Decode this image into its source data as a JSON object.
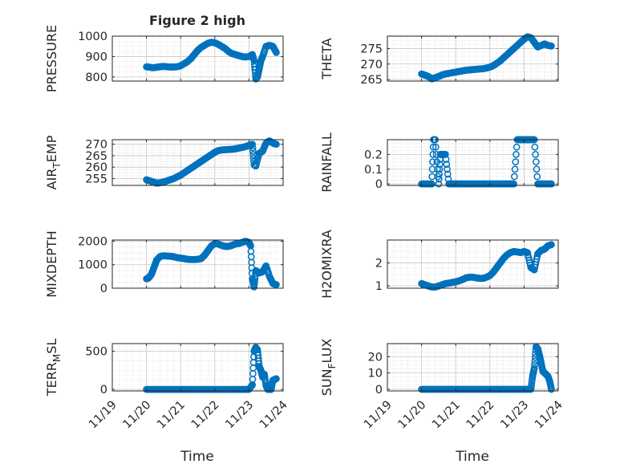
{
  "figure": {
    "title": "Figure 2 high",
    "xlabel": "Time",
    "x_ticklabels": [
      "11/19",
      "11/20",
      "11/21",
      "11/22",
      "11/23",
      "11/24"
    ],
    "marker_color": "#0072BD"
  },
  "chart_data": [
    {
      "type": "scatter",
      "ylabel": "PRESSURE",
      "xlim": [
        19,
        24
      ],
      "ylim": [
        780,
        1000
      ],
      "yticks": [
        800,
        900,
        1000
      ],
      "series": [
        {
          "x": [
            20.0,
            20.1,
            20.2,
            20.3,
            20.4,
            20.5,
            20.6,
            20.7,
            20.8,
            20.9,
            21.0,
            21.1,
            21.2,
            21.3,
            21.4,
            21.5,
            21.6,
            21.7,
            21.8,
            21.9,
            22.0,
            22.1,
            22.2,
            22.3,
            22.4,
            22.5,
            22.6,
            22.7,
            22.8,
            22.9,
            23.0,
            23.1,
            23.15,
            23.2,
            23.25,
            23.3,
            23.35,
            23.4,
            23.5,
            23.6,
            23.7,
            23.8
          ],
          "y": [
            850,
            848,
            845,
            848,
            850,
            852,
            850,
            849,
            849,
            850,
            855,
            865,
            875,
            890,
            910,
            930,
            945,
            955,
            965,
            970,
            968,
            960,
            950,
            940,
            925,
            915,
            910,
            905,
            900,
            898,
            900,
            910,
            880,
            790,
            800,
            840,
            880,
            900,
            950,
            955,
            950,
            920
          ]
        }
      ]
    },
    {
      "type": "scatter",
      "ylabel": "THETA",
      "xlim": [
        19,
        24
      ],
      "ylim": [
        264.5,
        279
      ],
      "yticks": [
        265,
        270,
        275
      ],
      "series": [
        {
          "x": [
            20.0,
            20.1,
            20.2,
            20.3,
            20.4,
            20.5,
            20.6,
            20.7,
            20.8,
            20.9,
            21.0,
            21.1,
            21.2,
            21.3,
            21.4,
            21.5,
            21.6,
            21.7,
            21.8,
            21.9,
            22.0,
            22.1,
            22.2,
            22.3,
            22.4,
            22.5,
            22.6,
            22.7,
            22.8,
            22.9,
            23.0,
            23.1,
            23.2,
            23.3,
            23.4,
            23.5,
            23.6,
            23.7,
            23.8
          ],
          "y": [
            266.8,
            266.4,
            266.0,
            265.2,
            265.6,
            266.0,
            266.5,
            266.8,
            267.0,
            267.2,
            267.4,
            267.6,
            267.8,
            268.0,
            268.1,
            268.2,
            268.3,
            268.4,
            268.5,
            268.7,
            269.0,
            269.5,
            270.2,
            271.0,
            272.0,
            273.0,
            274.0,
            275.0,
            276.0,
            277.0,
            278.0,
            278.8,
            278.5,
            277.0,
            275.5,
            276.0,
            276.5,
            276.0,
            275.8
          ]
        }
      ]
    },
    {
      "type": "scatter",
      "ylabel": "AIR_TEMP",
      "xlim": [
        19,
        24
      ],
      "ylim": [
        252,
        272
      ],
      "yticks": [
        255,
        260,
        265,
        270
      ],
      "series": [
        {
          "x": [
            20.0,
            20.1,
            20.2,
            20.3,
            20.4,
            20.5,
            20.6,
            20.7,
            20.8,
            20.9,
            21.0,
            21.1,
            21.2,
            21.3,
            21.4,
            21.5,
            21.6,
            21.7,
            21.8,
            21.9,
            22.0,
            22.1,
            22.2,
            22.3,
            22.4,
            22.5,
            22.6,
            22.7,
            22.8,
            22.9,
            23.0,
            23.1,
            23.15,
            23.2,
            23.3,
            23.4,
            23.5,
            23.6,
            23.7,
            23.8
          ],
          "y": [
            254.5,
            254.0,
            253.5,
            253.0,
            253.2,
            253.5,
            254.0,
            254.5,
            255.0,
            255.8,
            256.5,
            257.5,
            258.5,
            259.5,
            260.5,
            261.5,
            262.5,
            263.5,
            264.5,
            265.5,
            266.5,
            267.2,
            267.5,
            267.6,
            267.7,
            267.8,
            268.0,
            268.3,
            268.6,
            269.0,
            269.5,
            270.0,
            261.0,
            260.5,
            266.0,
            267.0,
            270.5,
            271.5,
            270.5,
            270.0
          ]
        }
      ]
    },
    {
      "type": "scatter",
      "ylabel": "RAINFALL",
      "xlim": [
        19,
        24
      ],
      "ylim": [
        -0.01,
        0.3
      ],
      "yticks": [
        0,
        0.1,
        0.2
      ],
      "series": [
        {
          "x": [
            20.0,
            20.1,
            20.2,
            20.3,
            20.35,
            20.4,
            20.5,
            20.55,
            20.6,
            20.7,
            20.8,
            20.9,
            21.0,
            21.1,
            21.2,
            21.3,
            21.4,
            21.5,
            21.6,
            21.7,
            21.8,
            21.9,
            22.0,
            22.1,
            22.2,
            22.3,
            22.4,
            22.5,
            22.6,
            22.7,
            22.8,
            22.9,
            23.0,
            23.1,
            23.2,
            23.3,
            23.4,
            23.5,
            23.6,
            23.7,
            23.8
          ],
          "y": [
            0,
            0,
            0,
            0,
            0.3,
            0.3,
            0,
            0.2,
            0.2,
            0.2,
            0,
            0,
            0,
            0,
            0,
            0,
            0,
            0,
            0,
            0,
            0,
            0,
            0,
            0,
            0,
            0,
            0,
            0,
            0,
            0,
            0.3,
            0.3,
            0.3,
            0.3,
            0.3,
            0.3,
            0,
            0,
            0,
            0,
            0
          ]
        }
      ]
    },
    {
      "type": "scatter",
      "ylabel": "MIXDEPTH",
      "xlim": [
        19,
        24
      ],
      "ylim": [
        0,
        2050
      ],
      "yticks": [
        0,
        1000,
        2000
      ],
      "series": [
        {
          "x": [
            20.0,
            20.05,
            20.1,
            20.15,
            20.2,
            20.25,
            20.3,
            20.4,
            20.5,
            20.6,
            20.7,
            20.8,
            20.9,
            21.0,
            21.1,
            21.2,
            21.3,
            21.4,
            21.5,
            21.6,
            21.7,
            21.8,
            21.9,
            22.0,
            22.1,
            22.2,
            22.3,
            22.4,
            22.5,
            22.6,
            22.7,
            22.8,
            22.9,
            23.0,
            23.05,
            23.1,
            23.15,
            23.2,
            23.3,
            23.4,
            23.5,
            23.6,
            23.7,
            23.8
          ],
          "y": [
            400,
            420,
            500,
            600,
            800,
            1000,
            1200,
            1350,
            1380,
            1370,
            1360,
            1340,
            1300,
            1280,
            1260,
            1230,
            1220,
            1220,
            1230,
            1260,
            1400,
            1600,
            1800,
            1900,
            1880,
            1820,
            1780,
            1780,
            1820,
            1880,
            1900,
            1950,
            2000,
            1950,
            1800,
            400,
            50,
            750,
            650,
            700,
            950,
            500,
            200,
            150
          ]
        }
      ]
    },
    {
      "type": "scatter",
      "ylabel": "H2OMIXRA",
      "xlim": [
        19,
        24
      ],
      "ylim": [
        0.9,
        3.0
      ],
      "yticks": [
        1,
        2
      ],
      "series": [
        {
          "x": [
            20.0,
            20.1,
            20.2,
            20.3,
            20.4,
            20.5,
            20.6,
            20.7,
            20.8,
            20.9,
            21.0,
            21.1,
            21.2,
            21.3,
            21.4,
            21.5,
            21.6,
            21.7,
            21.8,
            21.9,
            22.0,
            22.1,
            22.2,
            22.3,
            22.4,
            22.5,
            22.6,
            22.7,
            22.8,
            22.9,
            23.0,
            23.1,
            23.2,
            23.3,
            23.4,
            23.5,
            23.6,
            23.7,
            23.8
          ],
          "y": [
            1.1,
            1.05,
            1.0,
            0.95,
            0.95,
            1.0,
            1.05,
            1.1,
            1.12,
            1.15,
            1.18,
            1.22,
            1.28,
            1.35,
            1.38,
            1.38,
            1.35,
            1.33,
            1.33,
            1.38,
            1.45,
            1.6,
            1.8,
            2.0,
            2.2,
            2.35,
            2.45,
            2.5,
            2.48,
            2.45,
            2.5,
            2.45,
            1.8,
            1.7,
            2.4,
            2.55,
            2.6,
            2.75,
            2.8
          ]
        }
      ]
    },
    {
      "type": "scatter",
      "ylabel": "TERR_MSL",
      "xlim": [
        19,
        24
      ],
      "ylim": [
        -20,
        600
      ],
      "yticks": [
        0,
        500
      ],
      "series": [
        {
          "x": [
            20.0,
            20.2,
            20.4,
            20.6,
            20.8,
            21.0,
            21.2,
            21.4,
            21.6,
            21.8,
            22.0,
            22.2,
            22.4,
            22.6,
            22.8,
            23.0,
            23.1,
            23.15,
            23.2,
            23.25,
            23.3,
            23.35,
            23.4,
            23.45,
            23.5,
            23.55,
            23.6,
            23.65,
            23.7,
            23.75,
            23.8
          ],
          "y": [
            0,
            0,
            0,
            0,
            0,
            0,
            0,
            0,
            0,
            0,
            0,
            0,
            0,
            0,
            0,
            0,
            60,
            500,
            550,
            520,
            300,
            250,
            160,
            200,
            50,
            0,
            0,
            0,
            120,
            130,
            140
          ]
        }
      ]
    },
    {
      "type": "scatter",
      "ylabel": "SUN_FLUX",
      "xlim": [
        19,
        24
      ],
      "ylim": [
        -1,
        28
      ],
      "yticks": [
        0,
        10,
        20
      ],
      "series": [
        {
          "x": [
            20.0,
            20.2,
            20.4,
            20.6,
            20.8,
            21.0,
            21.2,
            21.4,
            21.6,
            21.8,
            22.0,
            22.2,
            22.4,
            22.6,
            22.8,
            23.0,
            23.2,
            23.25,
            23.3,
            23.35,
            23.4,
            23.45,
            23.5,
            23.55,
            23.6,
            23.65,
            23.7,
            23.75,
            23.8
          ],
          "y": [
            0,
            0,
            0,
            0,
            0,
            0,
            0,
            0,
            0,
            0,
            0,
            0,
            0,
            0,
            0,
            0,
            0,
            8,
            13,
            26,
            25,
            21,
            16,
            11,
            10,
            9,
            8,
            5,
            0
          ]
        }
      ]
    }
  ]
}
